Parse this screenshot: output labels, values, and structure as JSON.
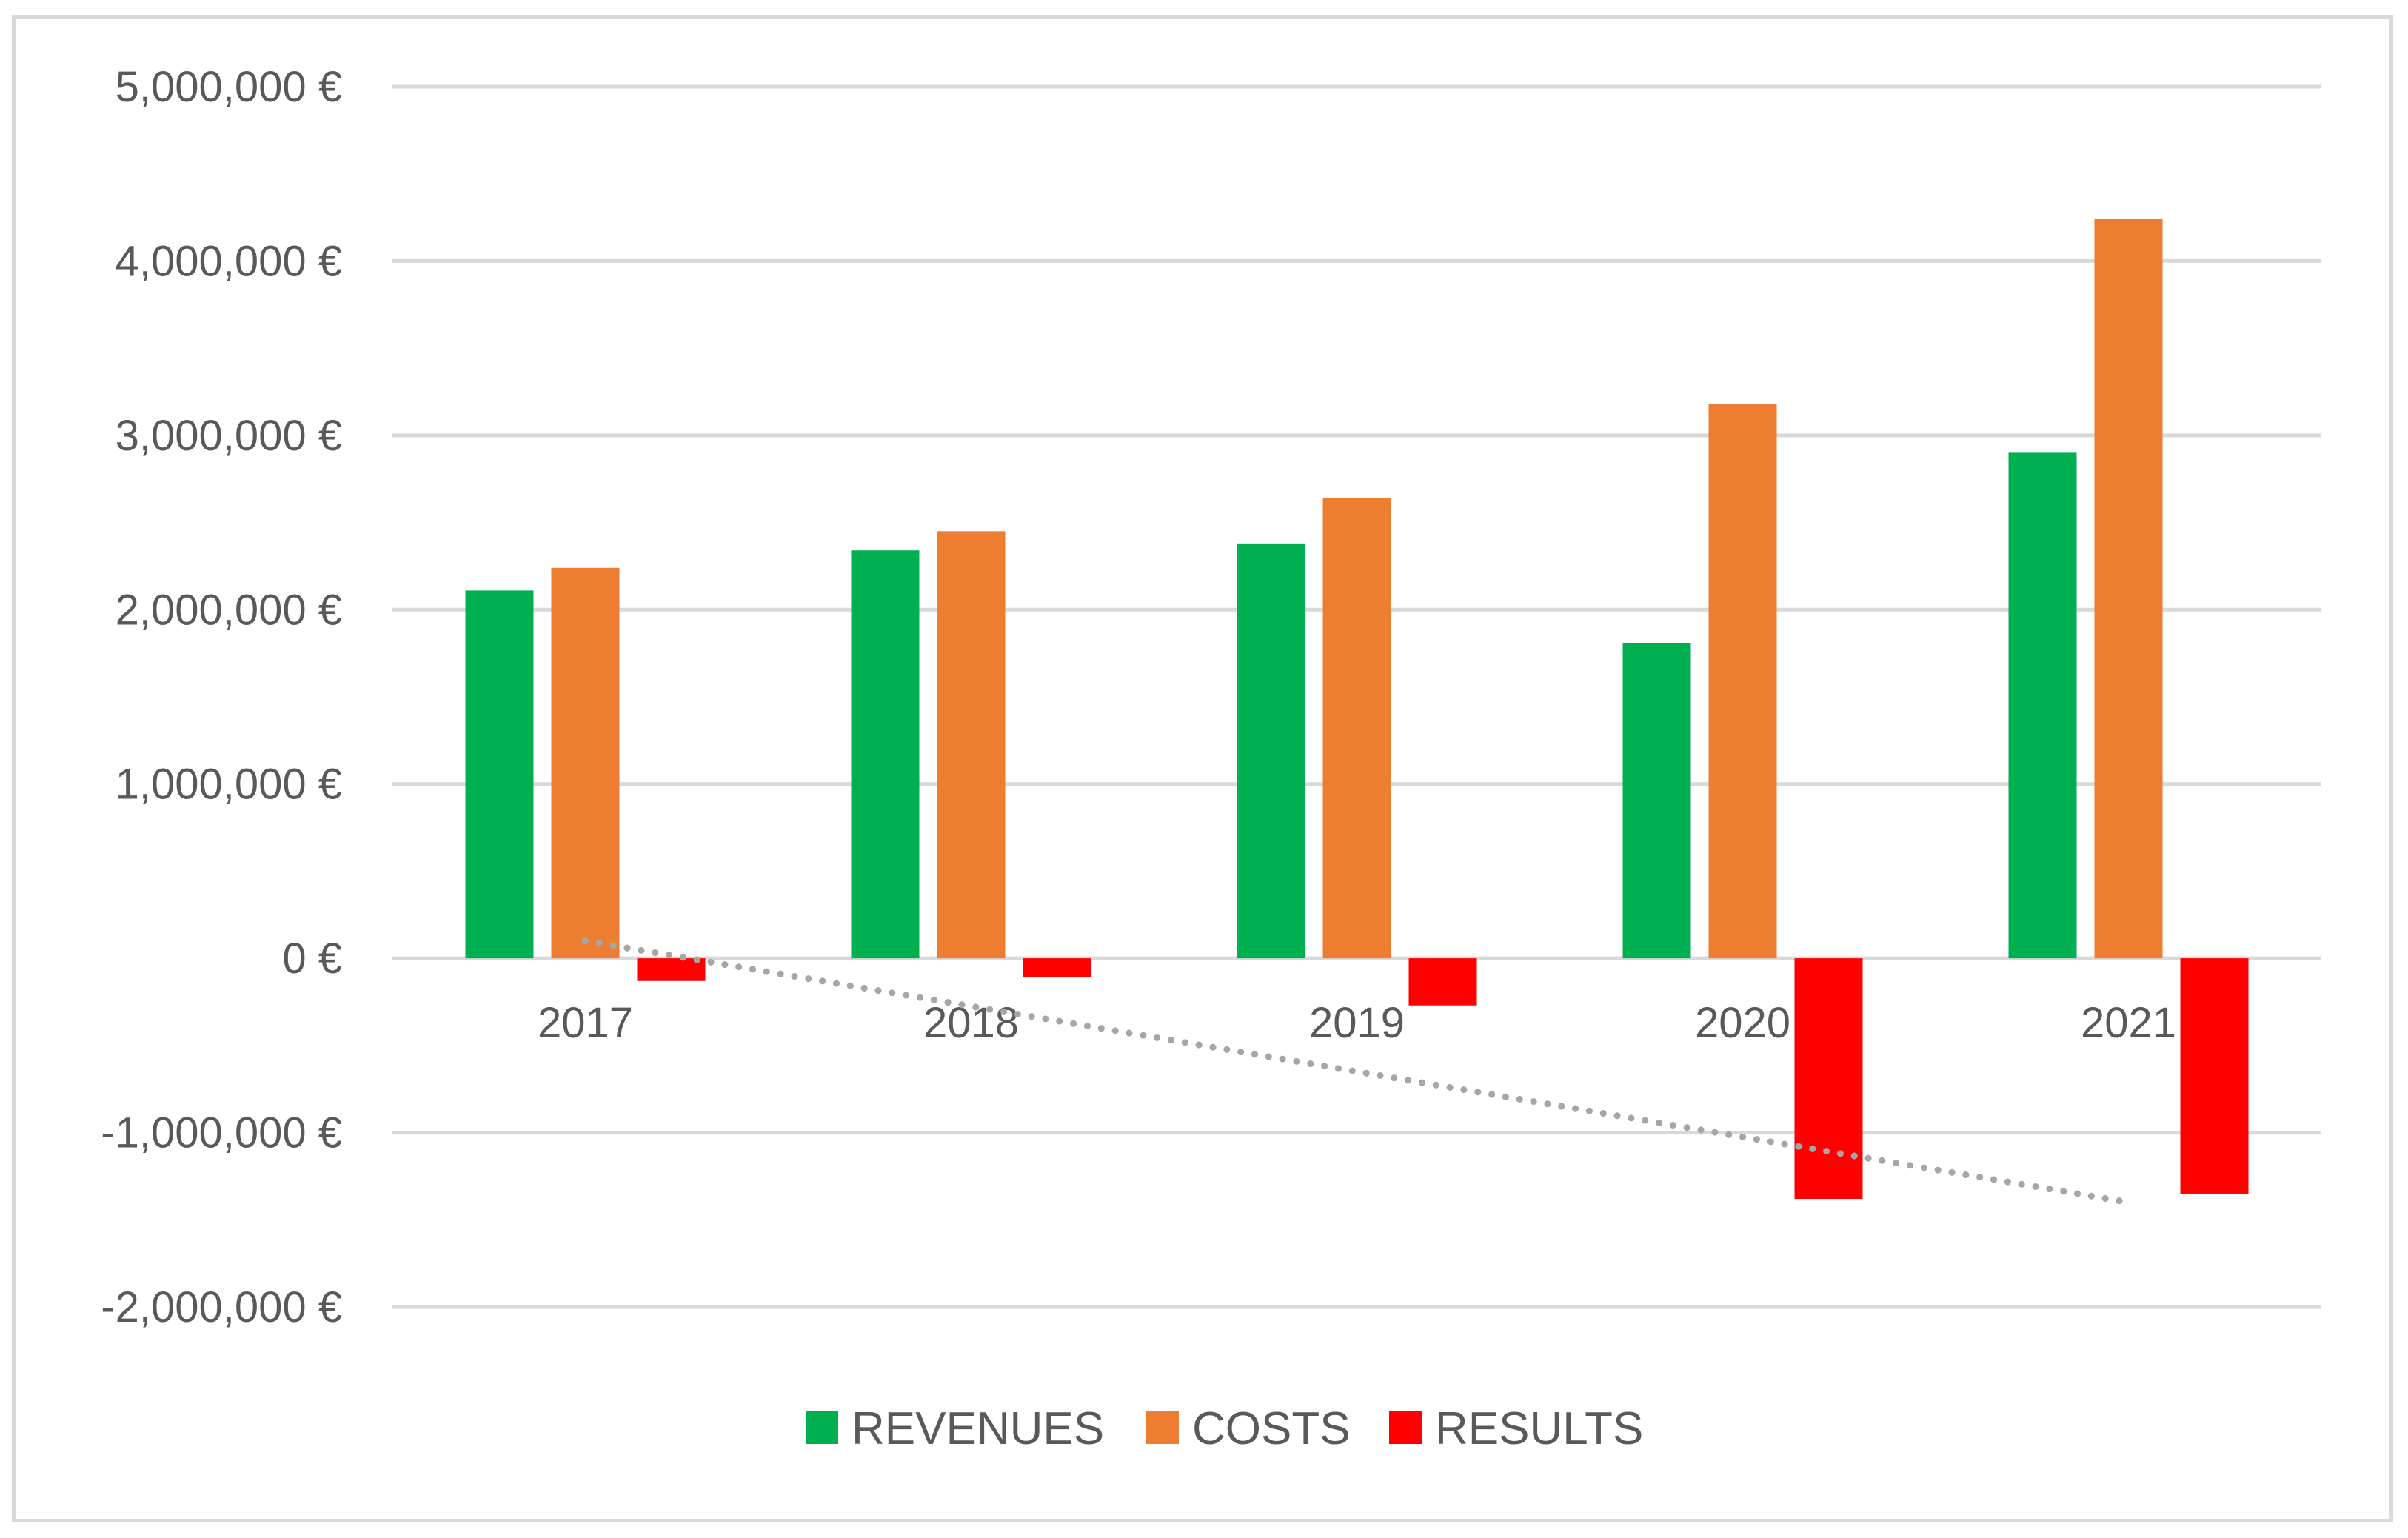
{
  "chart_data": {
    "type": "bar",
    "title": "",
    "xlabel": "",
    "ylabel": "",
    "categories": [
      "2017",
      "2018",
      "2019",
      "2020",
      "2021"
    ],
    "series": [
      {
        "name": "REVENUES",
        "color": "#00b050",
        "values": [
          2110000,
          2340000,
          2380000,
          1810000,
          2900000
        ]
      },
      {
        "name": "COSTS",
        "color": "#ed7d31",
        "values": [
          2240000,
          2450000,
          2640000,
          3180000,
          4240000
        ]
      },
      {
        "name": "RESULTS",
        "color": "#ff0000",
        "values": [
          -130000,
          -110000,
          -270000,
          -1380000,
          -1350000
        ]
      }
    ],
    "ylim": [
      -2000000,
      5000000
    ],
    "yticks": [
      5000000,
      4000000,
      3000000,
      2000000,
      1000000,
      0,
      -1000000,
      -2000000
    ],
    "ytick_labels": [
      "5,000,000 €",
      "4,000,000 €",
      "3,000,000 €",
      "2,000,000 €",
      "1,000,000 €",
      "0 €",
      "-1,000,000 €",
      "-2,000,000 €"
    ],
    "grid": true,
    "legend": "bottom-center",
    "trendline": {
      "series": "RESULTS",
      "kind": "linear",
      "style": "dotted",
      "color": "#a6a6a6",
      "start": {
        "category": "2017",
        "value": 100000
      },
      "end": {
        "category": "2021",
        "value": -1400000
      }
    }
  }
}
